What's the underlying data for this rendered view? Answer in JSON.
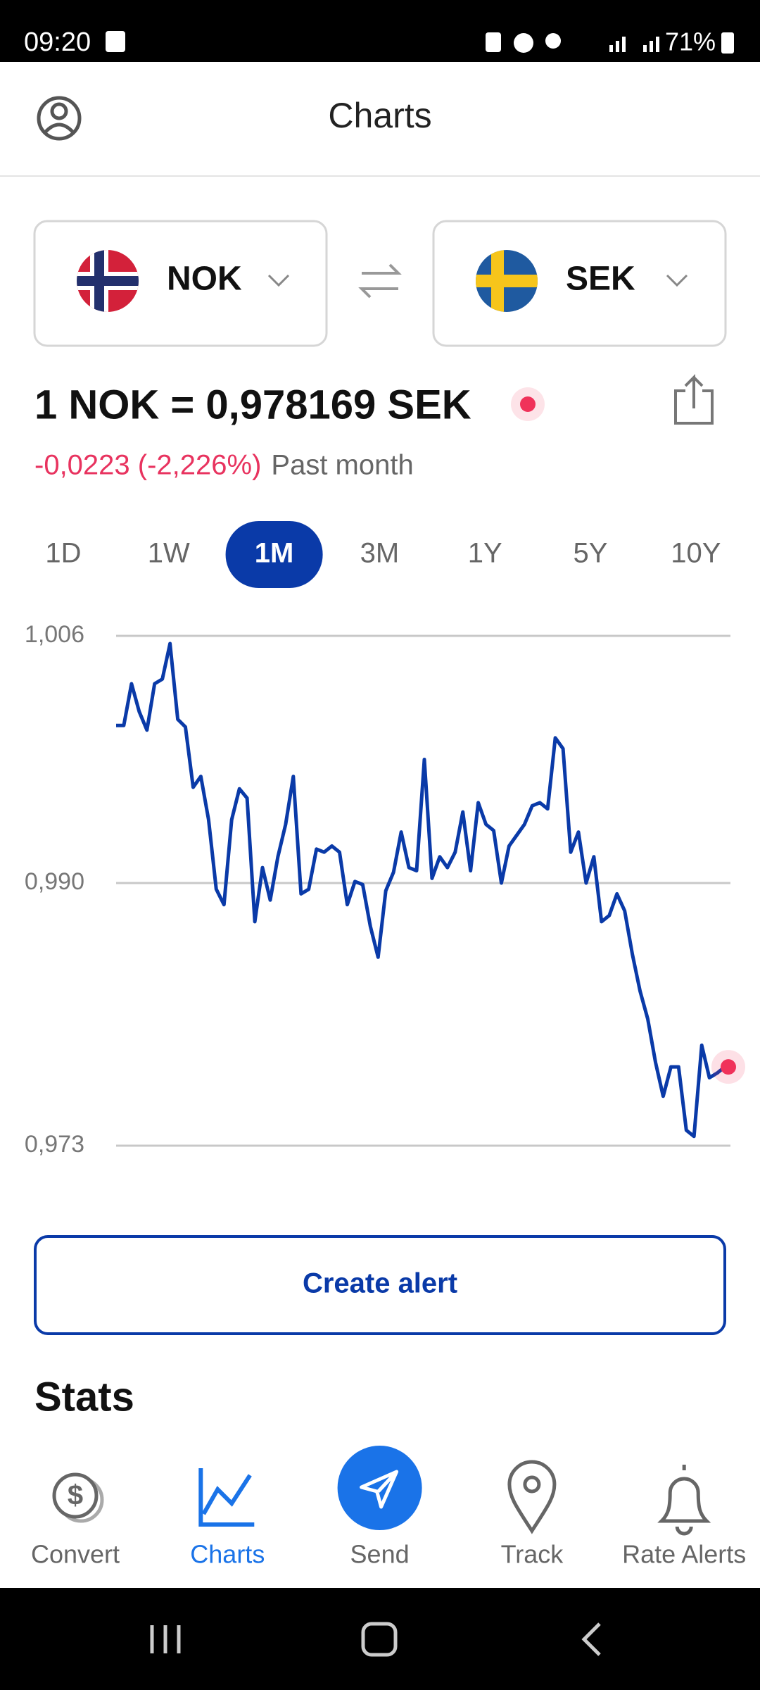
{
  "status_bar": {
    "time": "09:20",
    "battery": "71%"
  },
  "header": {
    "title": "Charts"
  },
  "from_currency": "NOK",
  "to_currency": "SEK",
  "rate": "1 NOK = 0,978169 SEK",
  "change": "-0,0223 (-2,226%)",
  "change_period": "Past month",
  "periods": [
    "1D",
    "1W",
    "1M",
    "3M",
    "1Y",
    "5Y",
    "10Y"
  ],
  "selected_period": "1M",
  "chart_data": {
    "type": "line",
    "color": "#0a3aa8",
    "end_marker_color": "#f0325a",
    "values": [
      1.0002,
      1.0002,
      1.0029,
      1.0011,
      0.9999,
      1.0029,
      1.0032,
      1.0055,
      1.0006,
      1.0001,
      0.9962,
      0.9969,
      0.9941,
      0.9896,
      0.9886,
      0.9941,
      0.9961,
      0.9955,
      0.9875,
      0.991,
      0.9889,
      0.9917,
      0.9938,
      0.9969,
      0.9893,
      0.9896,
      0.9922,
      0.992,
      0.9924,
      0.992,
      0.9886,
      0.9901,
      0.9899,
      0.9872,
      0.9852,
      0.9895,
      0.9907,
      0.9933,
      0.991,
      0.9908,
      0.998,
      0.9903,
      0.9917,
      0.991,
      0.992,
      0.9946,
      0.9908,
      0.9952,
      0.9938,
      0.9934,
      0.99,
      0.9924,
      0.9931,
      0.9938,
      0.995,
      0.9952,
      0.9948,
      0.9994,
      0.9987,
      0.992,
      0.9933,
      0.99,
      0.9917,
      0.9875,
      0.9879,
      0.9893,
      0.9882,
      0.9854,
      0.983,
      0.9812,
      0.9784,
      0.9762,
      0.9781,
      0.9781,
      0.974,
      0.9736,
      0.9795,
      0.9774,
      0.9777,
      0.9781
    ],
    "ylim": [
      0.973,
      1.006
    ],
    "yticks": [
      {
        "value": 0.973,
        "label": "0,973"
      },
      {
        "value": 0.99,
        "label": "0,990"
      },
      {
        "value": 1.006,
        "label": "1,006"
      }
    ],
    "grid": true
  },
  "button": "Create alert",
  "section_title": "Stats",
  "nav": [
    "Convert",
    "Charts",
    "Send",
    "Track",
    "Rate Alerts"
  ],
  "nav_selected": "Charts"
}
